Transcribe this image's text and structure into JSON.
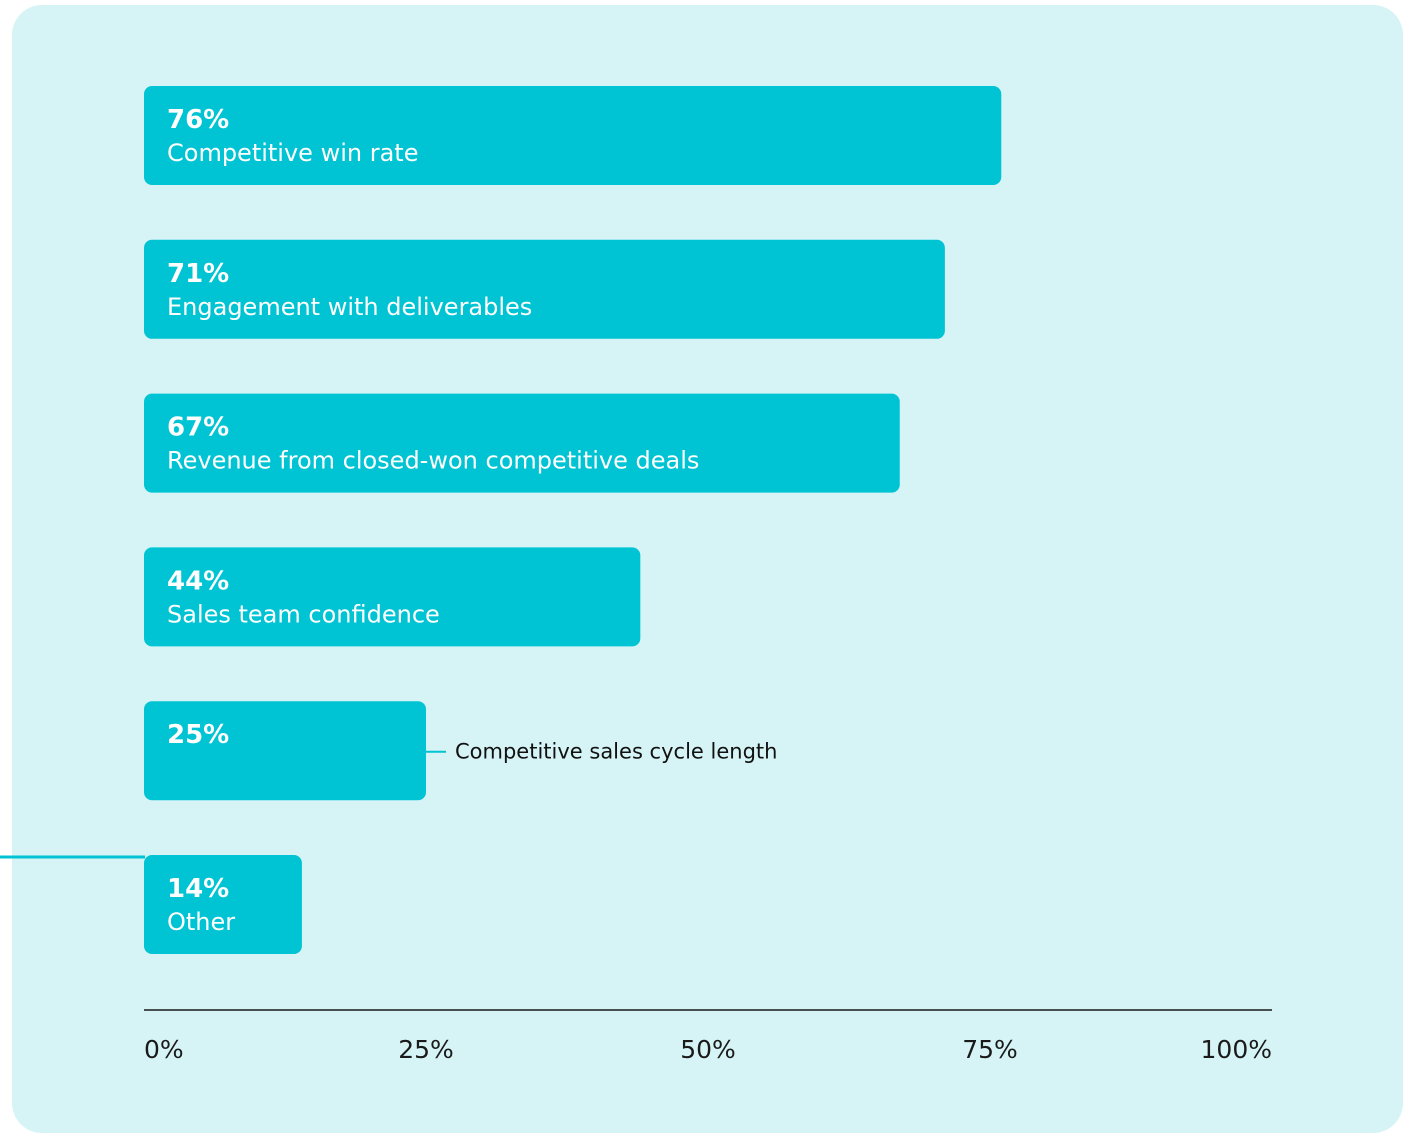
{
  "colors": {
    "background": "#d6f4f6",
    "bar": "#00c4d3",
    "axis": "#1a1a1a",
    "bar_text": "#ffffff",
    "outside_label": "#111111"
  },
  "chart_data": {
    "type": "bar",
    "orientation": "horizontal",
    "categories": [
      "Competitive win rate",
      "Engagement with deliverables",
      "Revenue from closed-won competitive deals",
      "Sales team confidence",
      "Competitive sales cycle length",
      "Other"
    ],
    "values": [
      76,
      71,
      67,
      44,
      25,
      14
    ],
    "value_labels": [
      "76%",
      "71%",
      "67%",
      "44%",
      "25%",
      "14%"
    ],
    "label_outside": [
      false,
      false,
      false,
      false,
      true,
      false
    ],
    "xlim": [
      0,
      100
    ],
    "x_ticks": [
      "0%",
      "25%",
      "50%",
      "75%",
      "100%"
    ],
    "title": "",
    "xlabel": "",
    "ylabel": "",
    "grid": false,
    "legend": "none"
  }
}
